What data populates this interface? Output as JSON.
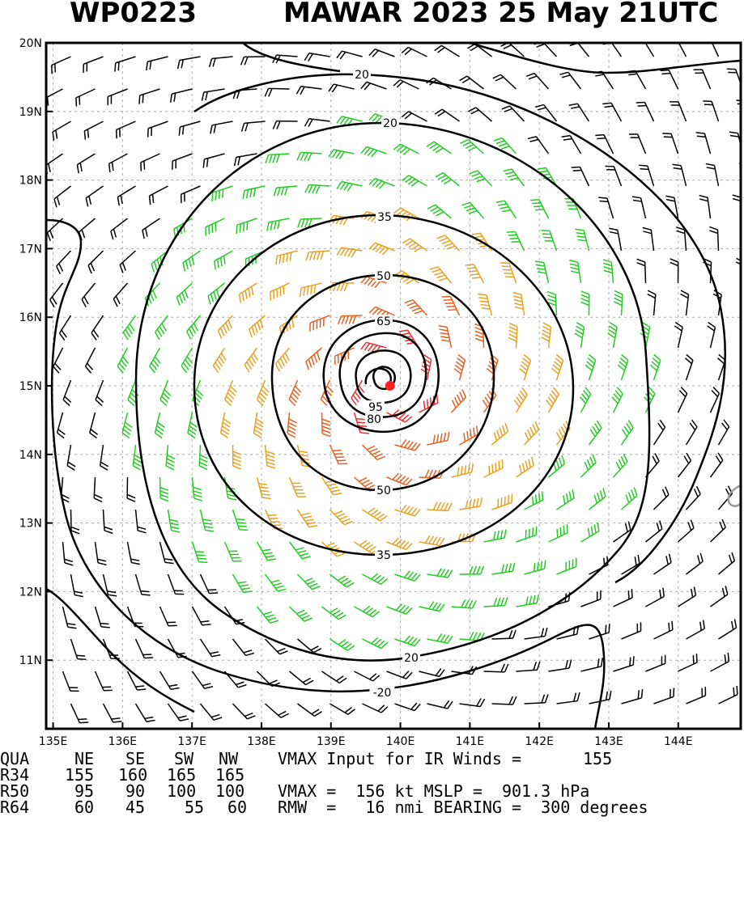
{
  "header": {
    "storm_id": "WP0223",
    "title": "MAWAR 2023 25 May 21UTC"
  },
  "map": {
    "lat_labels": [
      "20N",
      "19N",
      "18N",
      "17N",
      "16N",
      "15N",
      "14N",
      "13N",
      "12N",
      "11N"
    ],
    "lon_labels": [
      "135E",
      "136E",
      "137E",
      "138E",
      "139E",
      "140E",
      "141E",
      "142E",
      "143E",
      "144E"
    ],
    "contour_labels": [
      "20",
      "20",
      "35",
      "50",
      "65",
      "95",
      "80",
      "50",
      "35",
      "20",
      "-20"
    ],
    "storm_center": {
      "lat": 15.0,
      "lon": 139.85
    },
    "colors": {
      "below_34kt": "#000000",
      "gale_34_49kt": "#22cc22",
      "storm_50_63kt": "#e8a020",
      "hurricane_64_95kt": "#e86020",
      "major_gt_95kt": "#e83030",
      "center_marker": "#ff2020"
    }
  },
  "footer": {
    "row1": {
      "label": "QUA",
      "ne": "NE",
      "se": "SE",
      "sw": "SW",
      "nw": "NW",
      "text": "VMAX Input for IR Winds =",
      "value": "155"
    },
    "row2": {
      "label": "R34",
      "ne": "155",
      "se": "160",
      "sw": "165",
      "nw": "165"
    },
    "row3": {
      "label": "R50",
      "ne": "95",
      "se": "90",
      "sw": "100",
      "nw": "100",
      "text": "VMAX =  156 kt MSLP =  901.3 hPa"
    },
    "row4": {
      "label": "R64",
      "ne": "60",
      "se": "45",
      "sw": "55",
      "nw": "60",
      "text": "RMW  =   16 nmi BEARING =  300 degrees"
    }
  }
}
